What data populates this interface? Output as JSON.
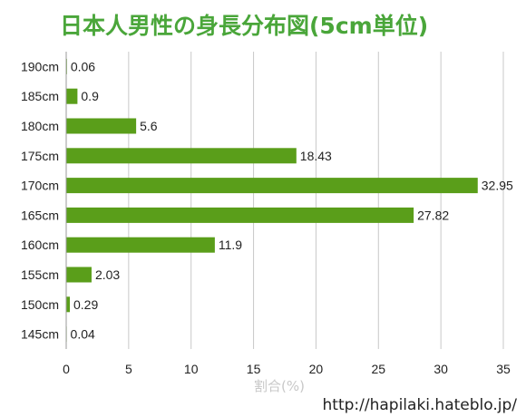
{
  "chart_data": {
    "type": "bar",
    "orientation": "horizontal",
    "title": "日本人男性の身長分布図(5cm単位)",
    "categories": [
      "190cm",
      "185cm",
      "180cm",
      "175cm",
      "170cm",
      "165cm",
      "160cm",
      "155cm",
      "150cm",
      "145cm"
    ],
    "values": [
      0.06,
      0.9,
      5.6,
      18.43,
      32.95,
      27.82,
      11.9,
      2.03,
      0.29,
      0.04
    ],
    "value_labels": [
      "0.06",
      "0.9",
      "5.6",
      "18.43",
      "32.95",
      "27.82",
      "11.9",
      "2.03",
      "0.29",
      "0.04"
    ],
    "xlabel": "割合(%)",
    "ylabel": "",
    "xlim": [
      0,
      35
    ],
    "xticks": [
      0,
      5,
      10,
      15,
      20,
      25,
      30,
      35
    ],
    "grid": "vertical",
    "legend": "none",
    "bar_color": "#5a9e1a",
    "title_color": "#4aa63a"
  },
  "watermark": "http://hapilaki.hateblo.jp/"
}
